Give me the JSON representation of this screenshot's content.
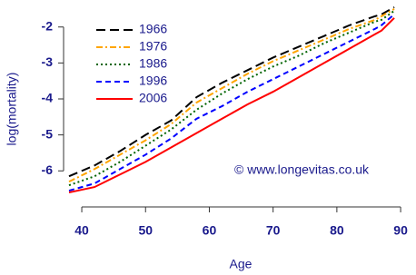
{
  "chart_data": {
    "type": "line",
    "x_label": "Age",
    "y_label": "log(mortality)",
    "annotation": "© www.longevitas.co.uk",
    "x": [
      38,
      42,
      46,
      50,
      54,
      58,
      62,
      66,
      70,
      74,
      78,
      82,
      86,
      87,
      89
    ],
    "series": [
      {
        "name": "1966",
        "color": "#000000",
        "linestyle": "longdash",
        "values": [
          -6.15,
          -5.85,
          -5.45,
          -5.0,
          -4.6,
          -3.95,
          -3.55,
          -3.2,
          -2.85,
          -2.55,
          -2.25,
          -1.95,
          -1.7,
          -1.65,
          -1.45
        ]
      },
      {
        "name": "1976",
        "color": "#ffa500",
        "linestyle": "dashdot",
        "values": [
          -6.3,
          -5.95,
          -5.55,
          -5.15,
          -4.7,
          -4.1,
          -3.7,
          -3.3,
          -2.95,
          -2.65,
          -2.35,
          -2.05,
          -1.8,
          -1.7,
          -1.5
        ]
      },
      {
        "name": "1986",
        "color": "#006400",
        "linestyle": "dotted",
        "values": [
          -6.4,
          -6.15,
          -5.75,
          -5.3,
          -4.85,
          -4.3,
          -3.85,
          -3.45,
          -3.1,
          -2.8,
          -2.45,
          -2.15,
          -1.85,
          -1.8,
          -1.55
        ]
      },
      {
        "name": "1996",
        "color": "#0000ff",
        "linestyle": "dashed",
        "values": [
          -6.55,
          -6.35,
          -5.95,
          -5.55,
          -5.1,
          -4.55,
          -4.2,
          -3.8,
          -3.45,
          -3.1,
          -2.75,
          -2.4,
          -2.05,
          -1.95,
          -1.65
        ]
      },
      {
        "name": "2006",
        "color": "#ff0000",
        "linestyle": "solid",
        "values": [
          -6.6,
          -6.45,
          -6.1,
          -5.75,
          -5.35,
          -4.95,
          -4.55,
          -4.15,
          -3.8,
          -3.4,
          -3.0,
          -2.6,
          -2.2,
          -2.1,
          -1.75
        ]
      }
    ],
    "xlim": [
      38,
      90.7
    ],
    "ylim": [
      -6.75,
      -1.3
    ],
    "xticks": [
      40,
      50,
      60,
      70,
      80,
      90
    ],
    "yticks": [
      -6,
      -5,
      -4,
      -3,
      -2
    ],
    "legend": "top-left"
  }
}
